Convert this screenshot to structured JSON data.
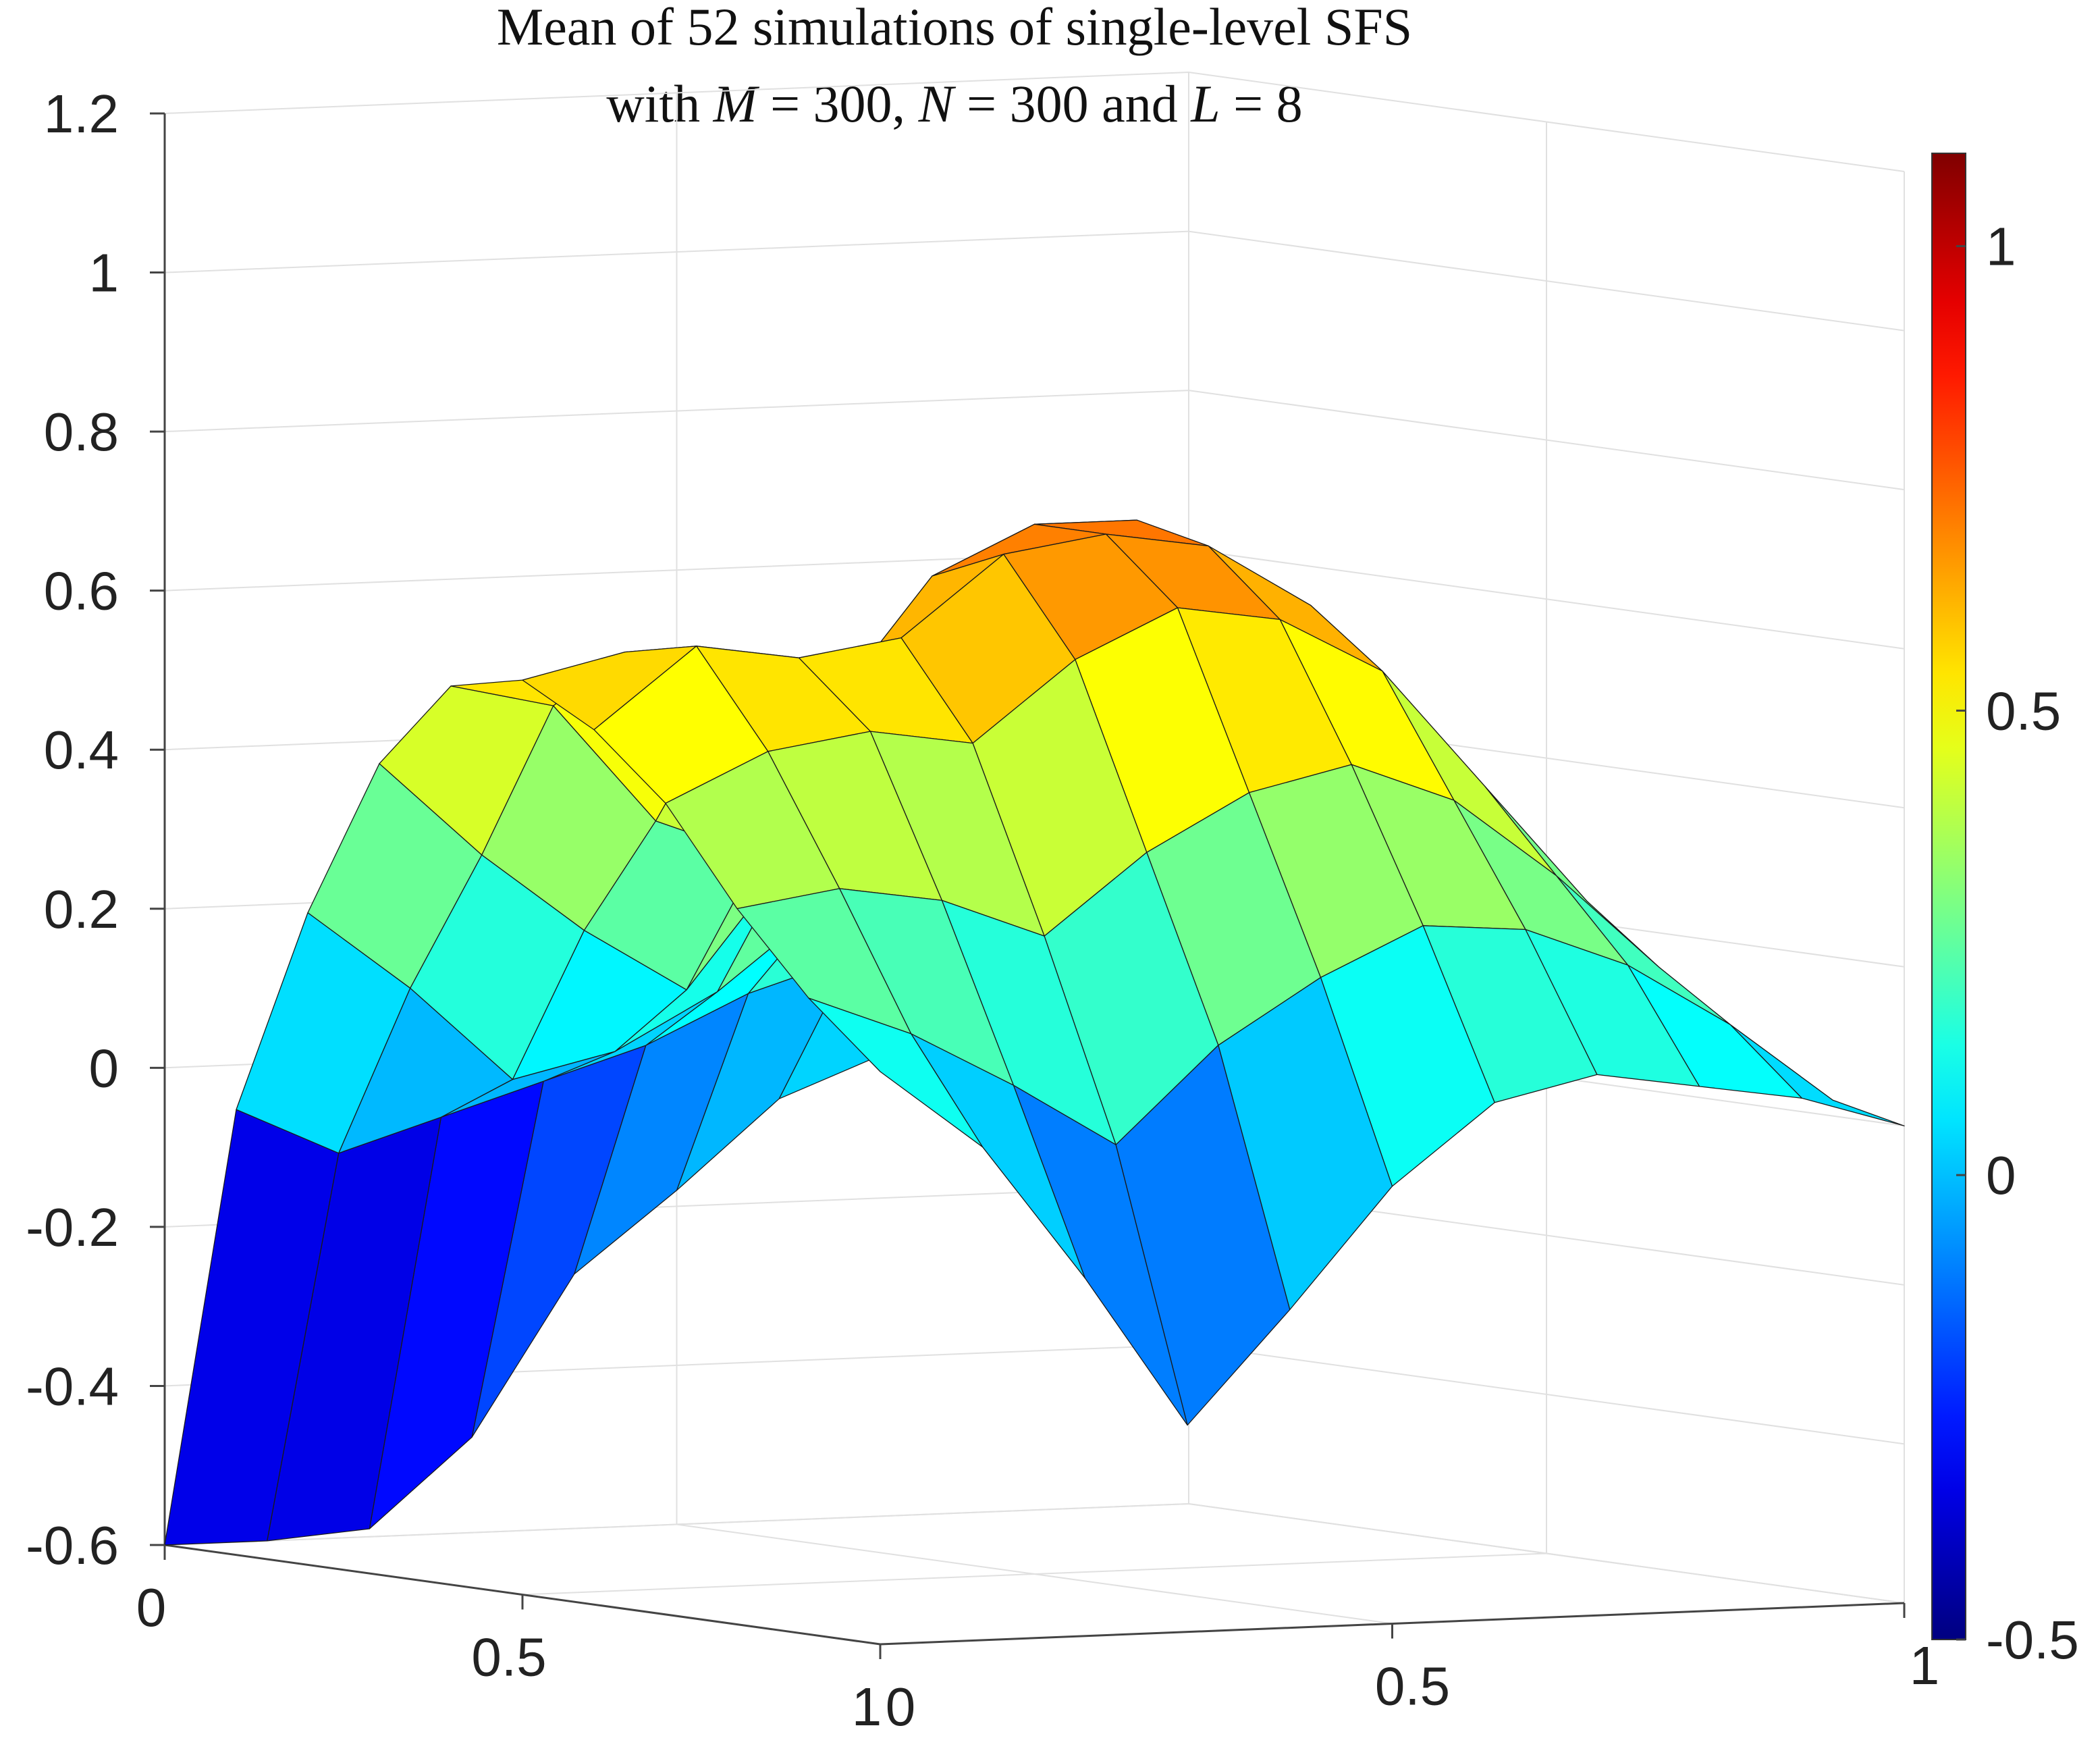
{
  "chart_data": {
    "type": "surface",
    "title": {
      "line1": "Mean of 52 simulations of single-level SFS",
      "line2_parts": [
        "with ",
        "M",
        " = 300, ",
        "N",
        " = 300 and ",
        "L",
        " = 8"
      ]
    },
    "xlabel": "",
    "ylabel": "",
    "zlabel": "",
    "x": [
      0,
      0.1,
      0.2,
      0.3,
      0.4,
      0.5,
      0.6,
      0.7,
      0.8,
      0.9,
      1
    ],
    "y": [
      0,
      0.1,
      0.2,
      0.3,
      0.4,
      0.5,
      0.6,
      0.7,
      0.8,
      0.9,
      1
    ],
    "z_rows_note_none": "",
    "z": [
      [
        -0.6,
        -0.6,
        -0.59,
        -0.48,
        -0.28,
        -0.18,
        -0.07,
        -0.02,
        0.0,
        0.0,
        0.0
      ],
      [
        -0.04,
        -0.1,
        -0.06,
        -0.02,
        0.02,
        0.08,
        0.12,
        0.1,
        0.06,
        0.02,
        0.0
      ],
      [
        0.22,
        0.12,
        0.0,
        0.03,
        0.1,
        0.2,
        0.26,
        0.22,
        0.15,
        0.08,
        0.02
      ],
      [
        0.42,
        0.3,
        0.2,
        0.12,
        0.28,
        0.42,
        0.45,
        0.4,
        0.3,
        0.18,
        0.06
      ],
      [
        0.53,
        0.5,
        0.35,
        0.3,
        0.48,
        0.6,
        0.62,
        0.55,
        0.42,
        0.28,
        0.12
      ],
      [
        0.55,
        0.58,
        0.52,
        0.5,
        0.66,
        0.72,
        0.72,
        0.65,
        0.5,
        0.34,
        0.15
      ],
      [
        0.5,
        0.6,
        0.58,
        0.6,
        0.7,
        0.72,
        0.7,
        0.62,
        0.46,
        0.3,
        0.12
      ],
      [
        0.42,
        0.48,
        0.5,
        0.48,
        0.58,
        0.64,
        0.62,
        0.55,
        0.4,
        0.25,
        0.08
      ],
      [
        0.3,
        0.32,
        0.3,
        0.25,
        0.35,
        0.42,
        0.45,
        0.4,
        0.3,
        0.18,
        0.05
      ],
      [
        0.2,
        0.15,
        0.08,
        0.0,
        0.12,
        0.2,
        0.26,
        0.25,
        0.2,
        0.12,
        0.02
      ],
      [
        0.12,
        0.02,
        -0.15,
        -0.34,
        -0.2,
        -0.05,
        0.05,
        0.08,
        0.06,
        0.04,
        0.0
      ]
    ],
    "zlim": [
      -0.6,
      1.2
    ],
    "zticks": [
      "-0.6",
      "-0.4",
      "-0.2",
      "0",
      "0.2",
      "0.4",
      "0.6",
      "0.8",
      "1",
      "1.2"
    ],
    "xticks": [
      "0",
      "0.5",
      "1"
    ],
    "yticks": [
      "0",
      "0.5",
      "1"
    ],
    "colorbar": {
      "colormap": "jet",
      "clim": [
        -0.5,
        1.1
      ],
      "ticks": [
        "-0.5",
        "0",
        "0.5",
        "1"
      ]
    },
    "grid": true
  }
}
